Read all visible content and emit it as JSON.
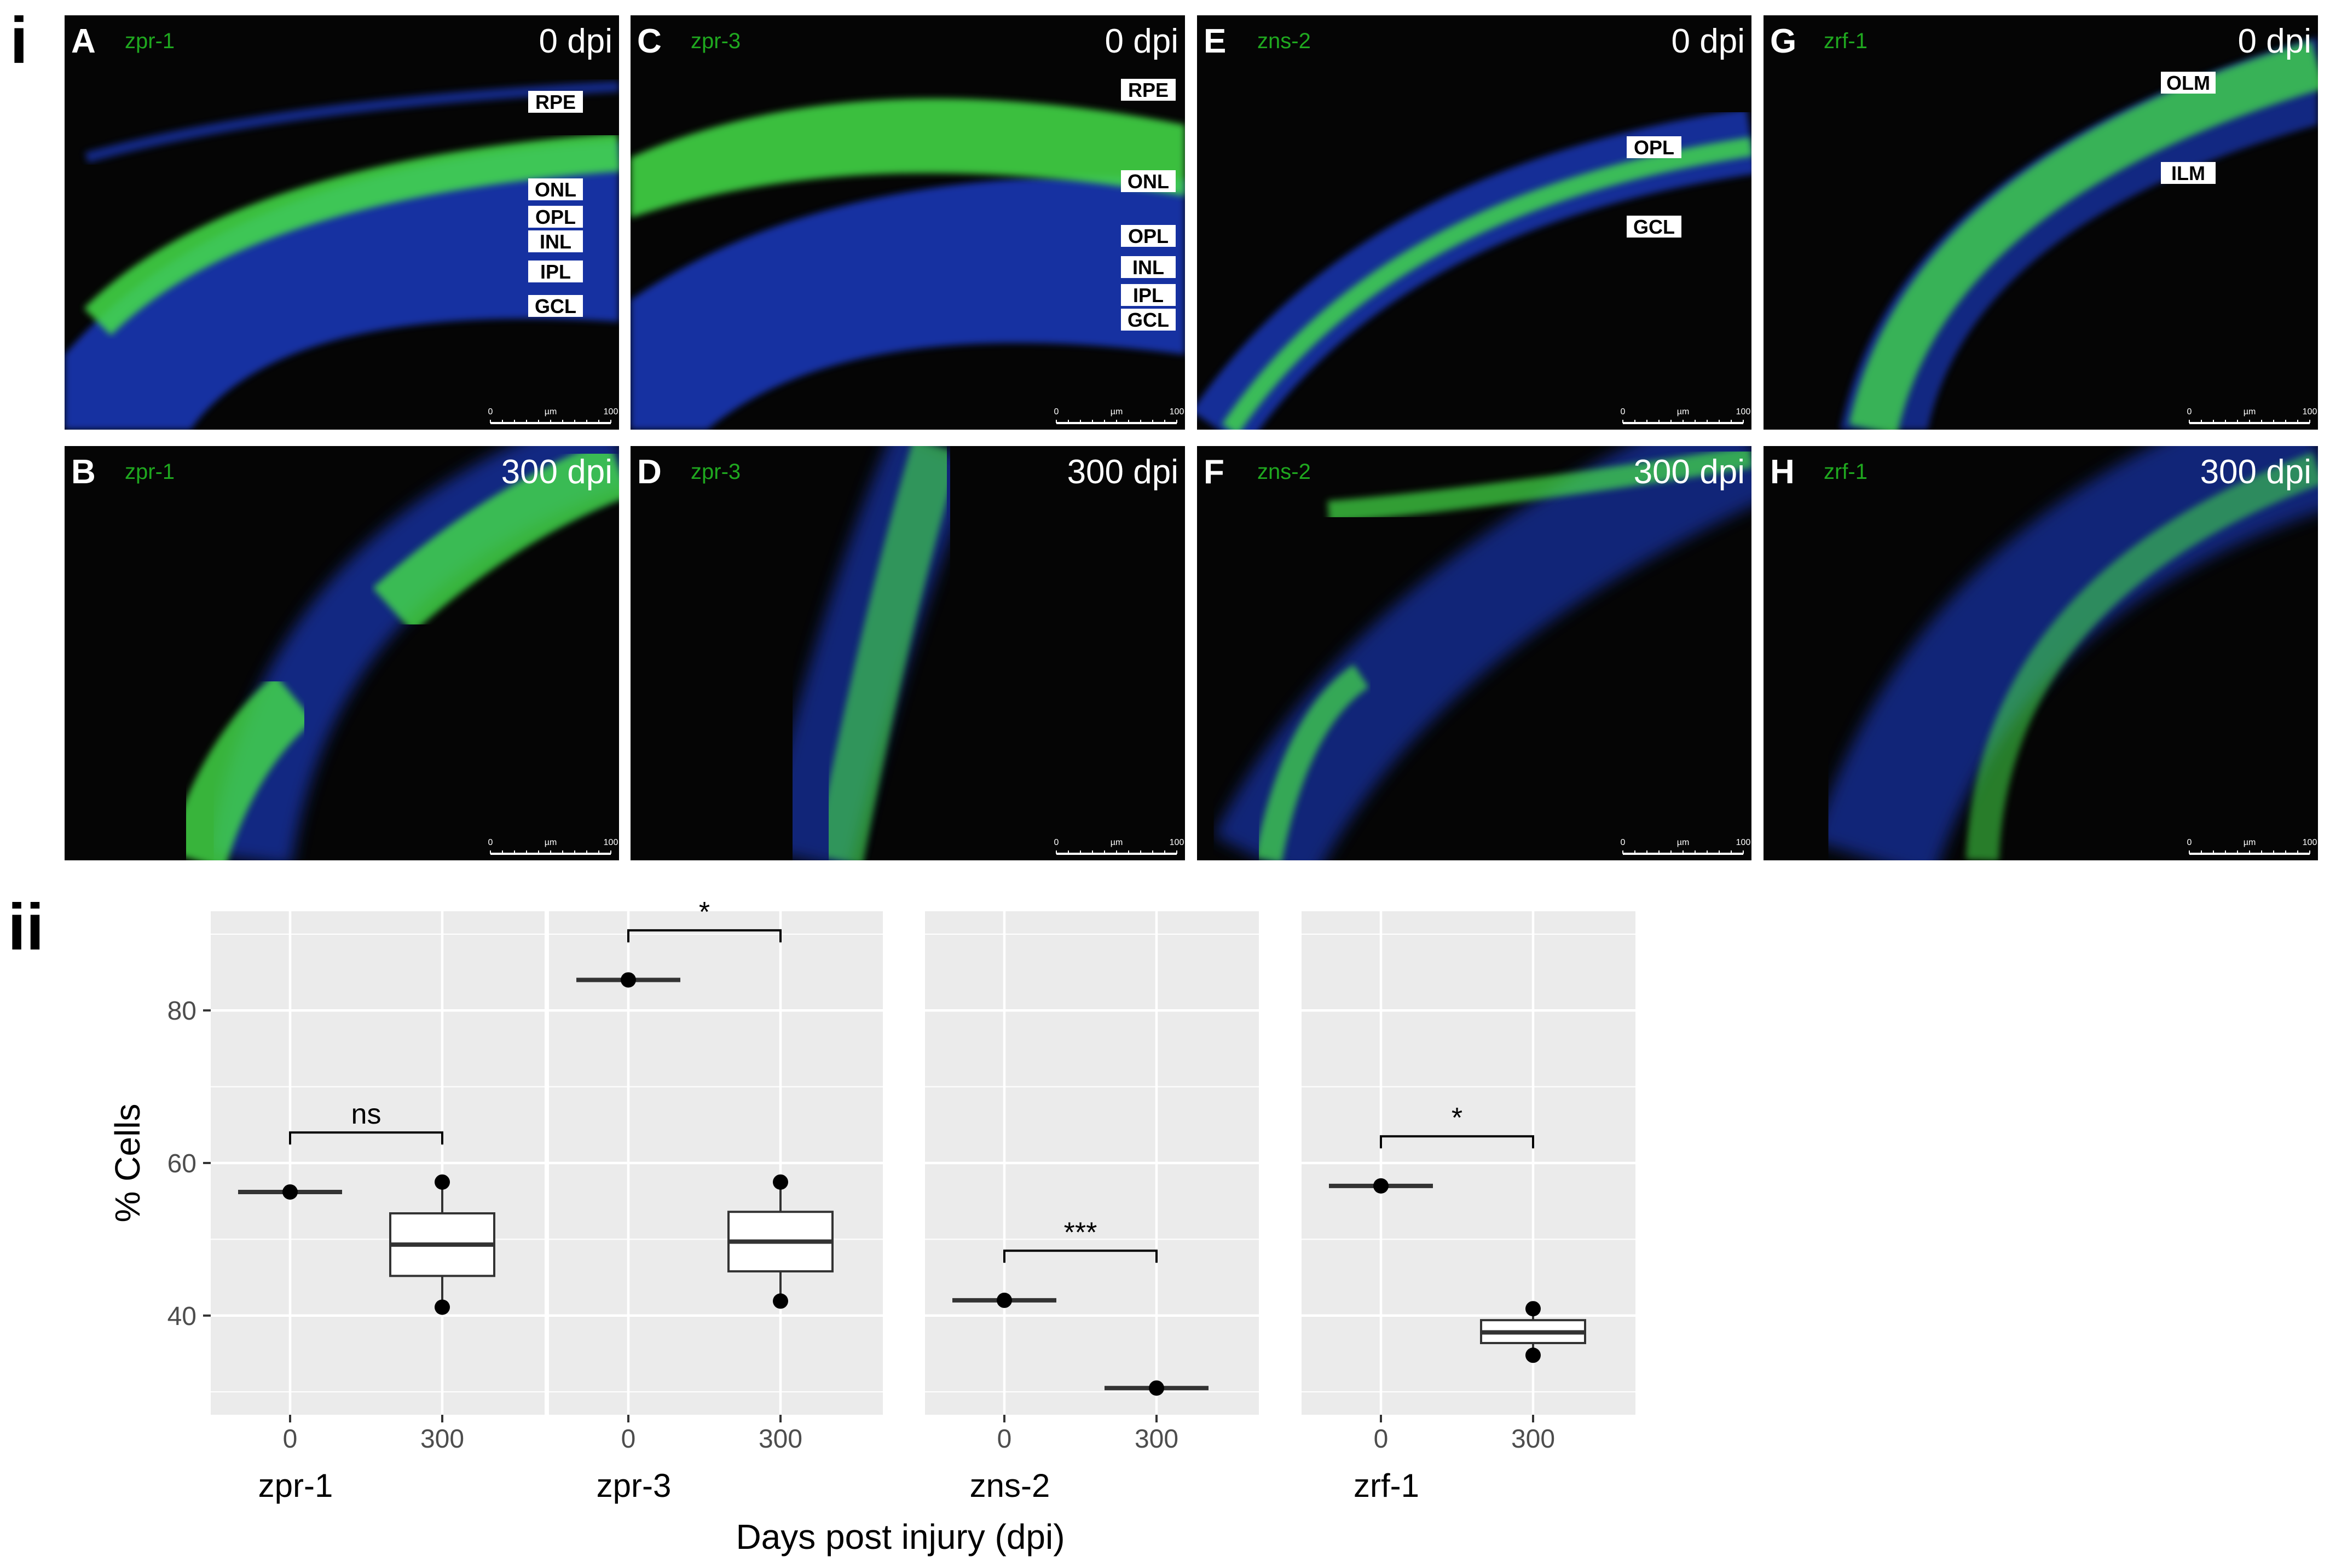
{
  "figure": {
    "part_labels": [
      "i",
      "ii"
    ]
  },
  "micrographs": [
    {
      "letter": "A",
      "stain": "zpr-1",
      "time": "0 dpi",
      "layers": [
        "RPE",
        "ONL",
        "OPL",
        "INL",
        "IPL",
        "GCL"
      ],
      "scale": [
        "0",
        "µm",
        "100"
      ]
    },
    {
      "letter": "C",
      "stain": "zpr-3",
      "time": "0 dpi",
      "layers": [
        "RPE",
        "ONL",
        "OPL",
        "INL",
        "IPL",
        "GCL"
      ],
      "scale": [
        "0",
        "µm",
        "100"
      ]
    },
    {
      "letter": "E",
      "stain": "zns-2",
      "time": "0 dpi",
      "layers": [
        "OPL",
        "GCL"
      ],
      "scale": [
        "0",
        "µm",
        "100"
      ]
    },
    {
      "letter": "G",
      "stain": "zrf-1",
      "time": "0 dpi",
      "layers": [
        "OLM",
        "ILM"
      ],
      "scale": [
        "0",
        "µm",
        "100"
      ]
    },
    {
      "letter": "B",
      "stain": "zpr-1",
      "time": "300 dpi",
      "layers": [],
      "scale": [
        "0",
        "µm",
        "100"
      ]
    },
    {
      "letter": "D",
      "stain": "zpr-3",
      "time": "300 dpi",
      "layers": [],
      "scale": [
        "0",
        "µm",
        "100"
      ]
    },
    {
      "letter": "F",
      "stain": "zns-2",
      "time": "300 dpi",
      "layers": [],
      "scale": [
        "0",
        "µm",
        "100"
      ]
    },
    {
      "letter": "H",
      "stain": "zrf-1",
      "time": "300 dpi",
      "layers": [],
      "scale": [
        "0",
        "µm",
        "100"
      ]
    }
  ],
  "chart_data": {
    "type": "box",
    "ylabel": "% Cells",
    "xlabel": "Days post injury (dpi)",
    "ylim": [
      27,
      93
    ],
    "yticks": [
      40,
      60,
      80
    ],
    "x_categories": [
      "0",
      "300"
    ],
    "grid": true,
    "facets": [
      {
        "name": "zpr-1",
        "significance": "ns",
        "groups": [
          {
            "x": "0",
            "median": 56.2,
            "q1": 56.2,
            "q3": 56.2,
            "min": 56.2,
            "max": 56.2,
            "points": [
              56.2
            ]
          },
          {
            "x": "300",
            "median": 49.3,
            "q1": 45.2,
            "q3": 53.4,
            "min": 41.1,
            "max": 57.5,
            "points": [
              57.5,
              41.1
            ]
          }
        ]
      },
      {
        "name": "zpr-3",
        "significance": "*",
        "groups": [
          {
            "x": "0",
            "median": 84,
            "q1": 84,
            "q3": 84,
            "min": 84,
            "max": 84,
            "points": [
              84
            ]
          },
          {
            "x": "300",
            "median": 49.7,
            "q1": 45.8,
            "q3": 53.6,
            "min": 41.9,
            "max": 57.5,
            "points": [
              57.5,
              41.9
            ]
          }
        ]
      },
      {
        "name": "zns-2",
        "significance": "***",
        "groups": [
          {
            "x": "0",
            "median": 42,
            "q1": 42,
            "q3": 42,
            "min": 42,
            "max": 42,
            "points": [
              42
            ]
          },
          {
            "x": "300",
            "median": 30.5,
            "q1": 30.5,
            "q3": 30.5,
            "min": 30.5,
            "max": 30.5,
            "points": [
              30.5
            ]
          }
        ]
      },
      {
        "name": "zrf-1",
        "significance": "*",
        "groups": [
          {
            "x": "0",
            "median": 57,
            "q1": 57,
            "q3": 57,
            "min": 57,
            "max": 57,
            "points": [
              57
            ]
          },
          {
            "x": "300",
            "median": 37.8,
            "q1": 36.4,
            "q3": 39.4,
            "min": 34.8,
            "max": 40.9,
            "points": [
              40.9,
              34.8
            ]
          }
        ]
      }
    ]
  },
  "colors": {
    "panel_bg": "#ebebeb",
    "grid": "#ffffff",
    "nuclei": "#1f3fd6",
    "stain": "#44e04a",
    "stain_label": "#1fa81f"
  }
}
